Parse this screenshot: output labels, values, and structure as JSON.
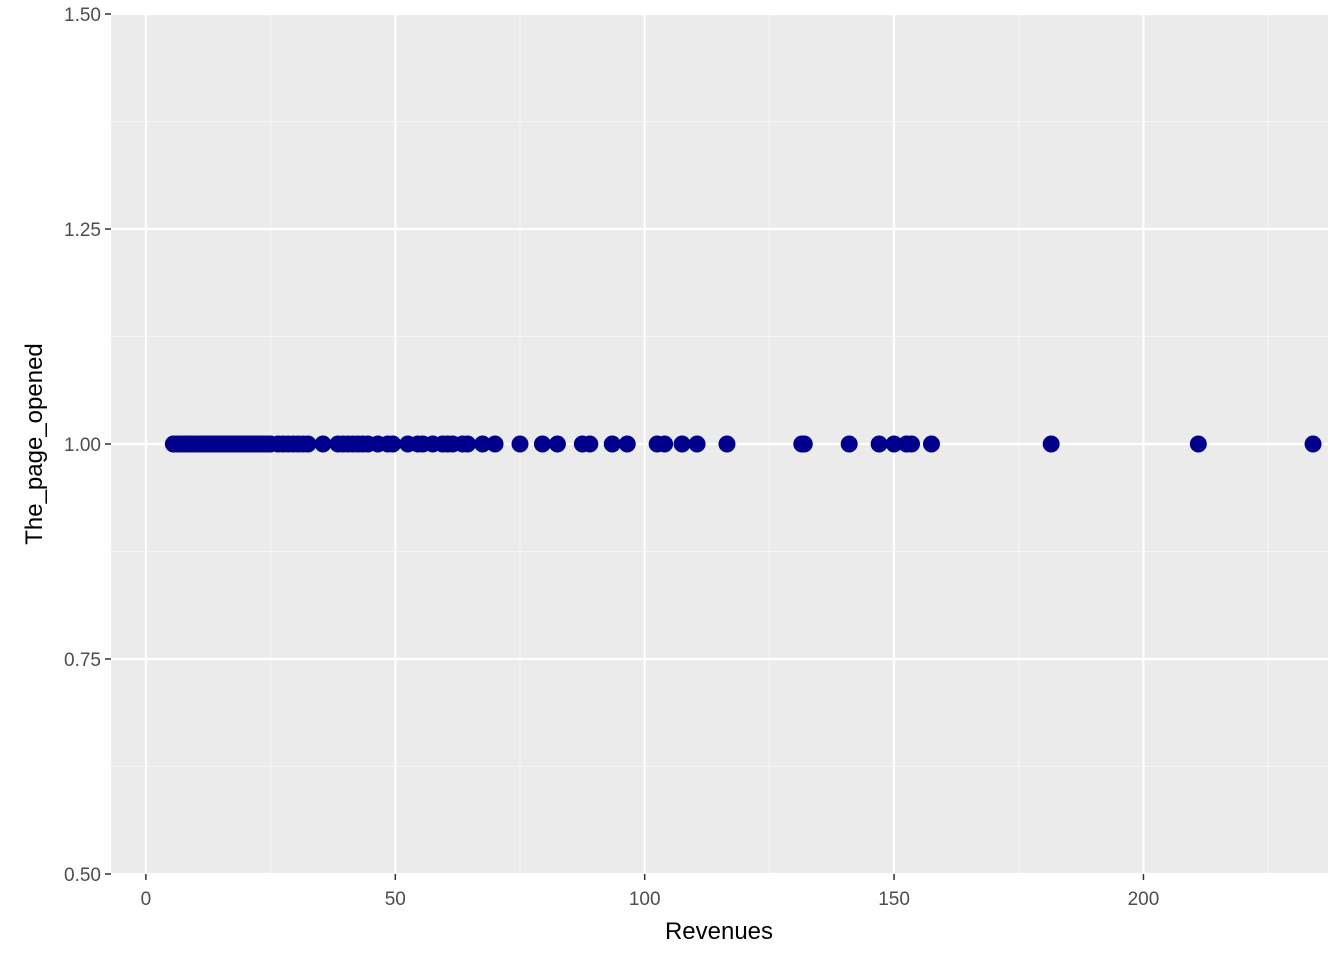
{
  "chart_data": {
    "type": "scatter",
    "title": "",
    "xlabel": "Revenues",
    "ylabel": "The_page_opened",
    "xlim": [
      -7,
      237
    ],
    "ylim": [
      0.5,
      1.5
    ],
    "x_ticks": [
      0,
      50,
      100,
      150,
      200
    ],
    "x_tick_labels": [
      "0",
      "50",
      "100",
      "150",
      "200"
    ],
    "y_ticks": [
      0.5,
      0.75,
      1.0,
      1.25,
      1.5
    ],
    "y_tick_labels": [
      "0.50",
      "0.75",
      "1.00",
      "1.25",
      "1.50"
    ],
    "grid": true,
    "legend": "none",
    "colors": {
      "panel": "#EBEBEB",
      "grid_major": "#FFFFFF",
      "grid_minor": "#F5F5F5",
      "point": "#00008B",
      "tick": "#333333"
    },
    "series": [
      {
        "x": [
          5.5,
          6.2,
          7,
          7.8,
          8.5,
          9.2,
          10,
          10.8,
          11.5,
          12.3,
          13,
          13.8,
          14.5,
          15.3,
          16,
          16.8,
          17.5,
          18.3,
          19,
          19.8,
          20.5,
          21.3,
          22,
          22.8,
          23.5,
          24.3,
          25,
          26.5,
          27.5,
          28.5,
          29.5,
          30.5,
          31.5,
          32.5,
          35.5,
          38.5,
          39.5,
          40.5,
          41.5,
          42.5,
          43.5,
          44.5,
          46.5,
          48.5,
          49.5,
          52.5,
          54.5,
          55.5,
          57.5,
          59.5,
          60.5,
          61.5,
          63.5,
          64.5,
          67.5,
          70,
          75,
          79.5,
          82.5,
          87.5,
          89,
          93.5,
          96.5,
          102.5,
          104,
          107.5,
          110.5,
          116.5,
          131.5,
          132,
          141,
          147,
          150,
          152.5,
          153.5,
          157.5,
          181.5,
          211,
          234
        ],
        "y": [
          1,
          1,
          1,
          1,
          1,
          1,
          1,
          1,
          1,
          1,
          1,
          1,
          1,
          1,
          1,
          1,
          1,
          1,
          1,
          1,
          1,
          1,
          1,
          1,
          1,
          1,
          1,
          1,
          1,
          1,
          1,
          1,
          1,
          1,
          1,
          1,
          1,
          1,
          1,
          1,
          1,
          1,
          1,
          1,
          1,
          1,
          1,
          1,
          1,
          1,
          1,
          1,
          1,
          1,
          1,
          1,
          1,
          1,
          1,
          1,
          1,
          1,
          1,
          1,
          1,
          1,
          1,
          1,
          1,
          1,
          1,
          1,
          1,
          1,
          1,
          1,
          1,
          1,
          1
        ]
      }
    ]
  }
}
